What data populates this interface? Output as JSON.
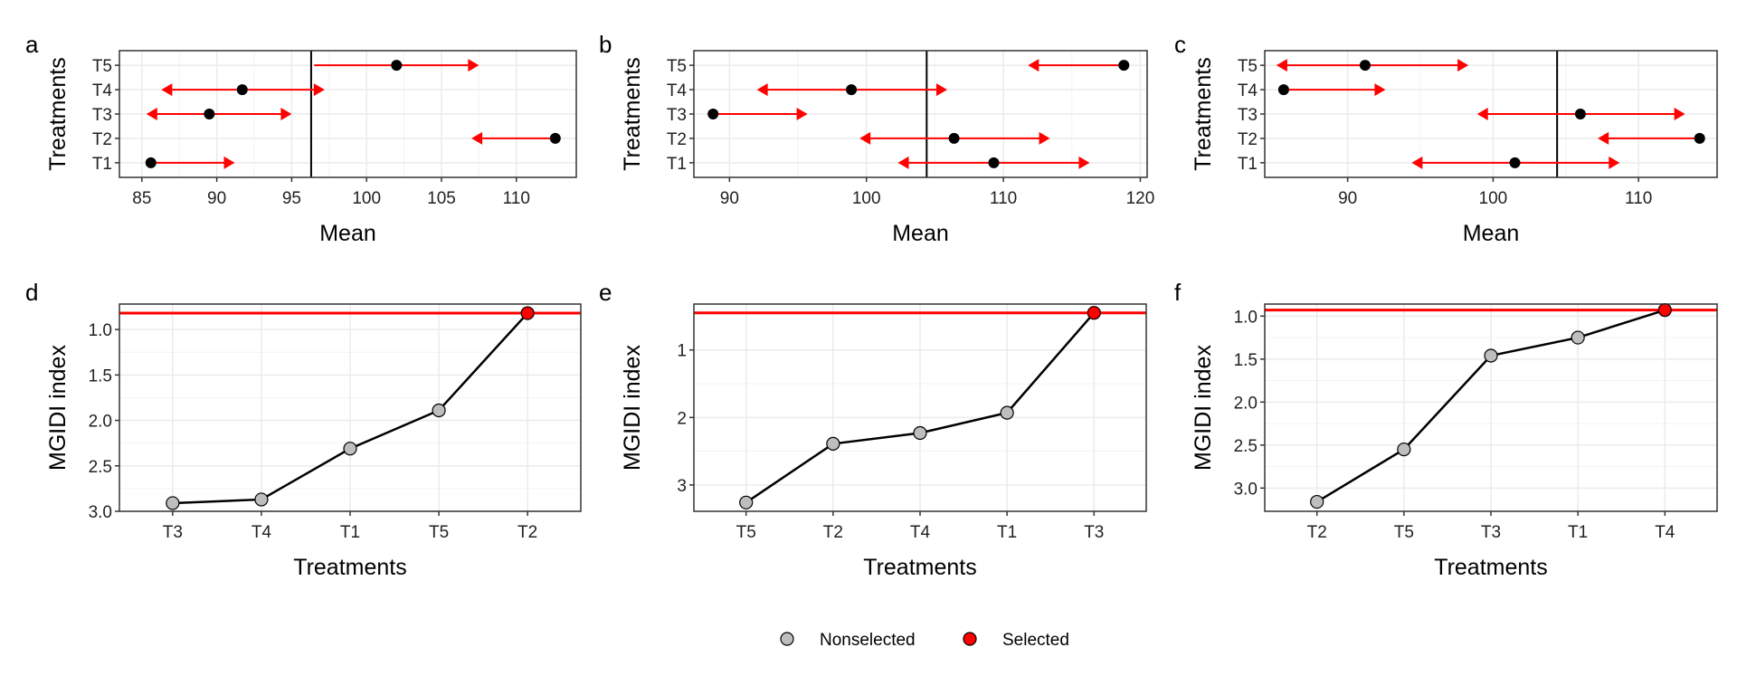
{
  "colors": {
    "selected": "#ff0000",
    "nonselected": "#bebebe",
    "arrow": "#ff0000",
    "mean_point": "#000000",
    "line": "#000000",
    "grid": "#ebebeb",
    "panel_border": "#333333"
  },
  "chart_data": [
    {
      "panel": "a",
      "type": "scatter",
      "xlabel": "Mean",
      "ylabel": "Treatments",
      "categories": [
        "T1",
        "T2",
        "T3",
        "T4",
        "T5"
      ],
      "xlim": [
        83.5,
        114
      ],
      "xticks": [
        85,
        90,
        95,
        100,
        105,
        110
      ],
      "means": [
        85.6,
        112.6,
        89.5,
        91.7,
        102.0
      ],
      "arrow_start": [
        85.6,
        112.6,
        89.5,
        91.7,
        96.5
      ],
      "arrow_ends": [
        [
          91.2
        ],
        [
          107.0
        ],
        [
          85.3,
          95.0
        ],
        [
          86.3,
          97.2
        ],
        [
          107.5
        ]
      ],
      "vline": 96.3,
      "grid": true
    },
    {
      "panel": "b",
      "type": "scatter",
      "xlabel": "Mean",
      "ylabel": "Treatments",
      "categories": [
        "T1",
        "T2",
        "T3",
        "T4",
        "T5"
      ],
      "xlim": [
        87.4,
        120.5
      ],
      "xticks": [
        90,
        100,
        110,
        120
      ],
      "means": [
        109.3,
        106.4,
        88.8,
        98.9,
        118.8
      ],
      "arrow_start": [
        109.3,
        106.4,
        88.8,
        98.9,
        118.8
      ],
      "arrow_ends": [
        [
          102.3,
          116.3
        ],
        [
          99.5,
          113.4
        ],
        [
          95.7
        ],
        [
          92.0,
          105.9
        ],
        [
          111.8
        ]
      ],
      "vline": 104.4,
      "grid": true
    },
    {
      "panel": "c",
      "type": "scatter",
      "xlabel": "Mean",
      "ylabel": "Treatments",
      "categories": [
        "T1",
        "T2",
        "T3",
        "T4",
        "T5"
      ],
      "xlim": [
        84.3,
        115.4
      ],
      "xticks": [
        90,
        100,
        110
      ],
      "means": [
        101.5,
        114.2,
        106.0,
        85.6,
        91.2
      ],
      "arrow_start": [
        101.5,
        114.2,
        106.0,
        85.6,
        91.2
      ],
      "arrow_ends": [
        [
          94.4,
          108.7
        ],
        [
          107.2
        ],
        [
          98.9,
          113.2
        ],
        [
          92.6
        ],
        [
          85.1,
          98.3
        ]
      ],
      "vline": 104.4,
      "grid": true
    },
    {
      "panel": "d",
      "type": "line",
      "xlabel": "Treatments",
      "ylabel": "MGIDI index",
      "categories": [
        "T3",
        "T4",
        "T1",
        "T5",
        "T2"
      ],
      "values": [
        2.91,
        2.87,
        2.31,
        1.89,
        0.82
      ],
      "selected": [
        false,
        false,
        false,
        false,
        true
      ],
      "ylim": [
        0.72,
        3.0
      ],
      "yreverse": true,
      "yticks": [
        1.0,
        1.5,
        2.0,
        2.5,
        3.0
      ],
      "ytick_labels": [
        "1.0",
        "1.5",
        "2.0",
        "2.5",
        "3.0"
      ],
      "hline": 0.82,
      "grid": true
    },
    {
      "panel": "e",
      "type": "line",
      "xlabel": "Treatments",
      "ylabel": "MGIDI index",
      "categories": [
        "T5",
        "T2",
        "T4",
        "T1",
        "T3"
      ],
      "values": [
        3.26,
        2.39,
        2.23,
        1.93,
        0.45
      ],
      "selected": [
        false,
        false,
        false,
        false,
        true
      ],
      "ylim": [
        0.32,
        3.39
      ],
      "yreverse": true,
      "yticks": [
        1,
        2,
        3
      ],
      "ytick_labels": [
        "1",
        "2",
        "3"
      ],
      "hline": 0.45,
      "grid": true
    },
    {
      "panel": "f",
      "type": "line",
      "xlabel": "Treatments",
      "ylabel": "MGIDI index",
      "categories": [
        "T2",
        "T5",
        "T3",
        "T1",
        "T4"
      ],
      "values": [
        3.16,
        2.55,
        1.46,
        1.25,
        0.93
      ],
      "selected": [
        false,
        false,
        false,
        false,
        true
      ],
      "ylim": [
        0.86,
        3.27
      ],
      "yreverse": true,
      "yticks": [
        1.0,
        1.5,
        2.0,
        2.5,
        3.0
      ],
      "ytick_labels": [
        "1.0",
        "1.5",
        "2.0",
        "2.5",
        "3.0"
      ],
      "hline": 0.93,
      "grid": true
    }
  ],
  "legend": {
    "position": "bottom-center",
    "items": [
      {
        "label": "Nonselected",
        "color": "#bebebe"
      },
      {
        "label": "Selected",
        "color": "#ff0000"
      }
    ]
  }
}
